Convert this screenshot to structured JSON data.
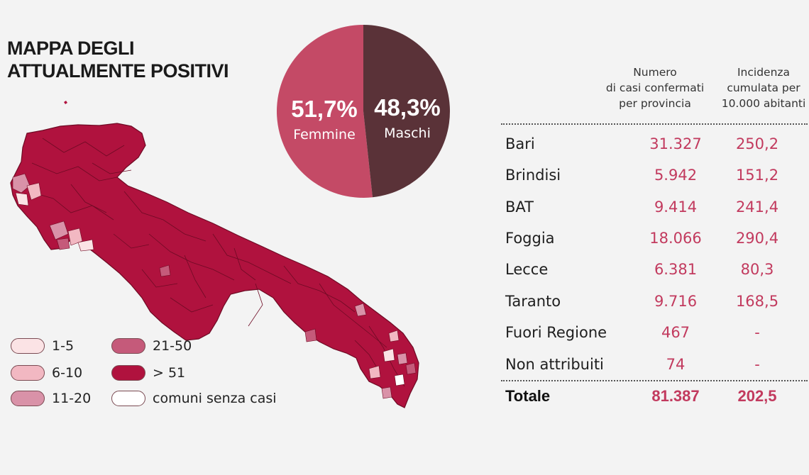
{
  "title": {
    "line1": "MAPPA DEGLI",
    "line2": "ATTUALMENTE POSITIVI"
  },
  "pie": {
    "female": {
      "pct": "51,7%",
      "label": "Femmine",
      "value": 51.7,
      "color": "#c44a66"
    },
    "male": {
      "pct": "48,3%",
      "label": "Maschi",
      "value": 48.3,
      "color": "#5a3238"
    }
  },
  "legend": [
    {
      "label": "1-5",
      "color": "#fbe3e5"
    },
    {
      "label": "6-10",
      "color": "#f2b8c2"
    },
    {
      "label": "11-20",
      "color": "#d992a8"
    },
    {
      "label": "21-50",
      "color": "#c55a7a"
    },
    {
      "label": "> 51",
      "color": "#b0123e"
    },
    {
      "label": "comuni senza casi",
      "color": "#ffffff"
    }
  ],
  "map": {
    "main_color": "#b0123e",
    "border_color": "#6e0a24"
  },
  "table": {
    "col1_header": [
      "Numero",
      "di casi confermati",
      "per provincia"
    ],
    "col2_header": [
      "Incidenza",
      "cumulata per",
      "10.000 abitanti"
    ],
    "rows": [
      {
        "name": "Bari",
        "cases": "31.327",
        "incidence": "250,2"
      },
      {
        "name": "Brindisi",
        "cases": "5.942",
        "incidence": "151,2"
      },
      {
        "name": "BAT",
        "cases": "9.414",
        "incidence": "241,4"
      },
      {
        "name": "Foggia",
        "cases": "18.066",
        "incidence": "290,4"
      },
      {
        "name": "Lecce",
        "cases": "6.381",
        "incidence": "80,3"
      },
      {
        "name": "Taranto",
        "cases": "9.716",
        "incidence": "168,5"
      },
      {
        "name": "Fuori Regione",
        "cases": "467",
        "incidence": "-"
      },
      {
        "name": "Non attribuiti",
        "cases": "74",
        "incidence": "-"
      }
    ],
    "total": {
      "name": "Totale",
      "cases": "81.387",
      "incidence": "202,5"
    }
  }
}
